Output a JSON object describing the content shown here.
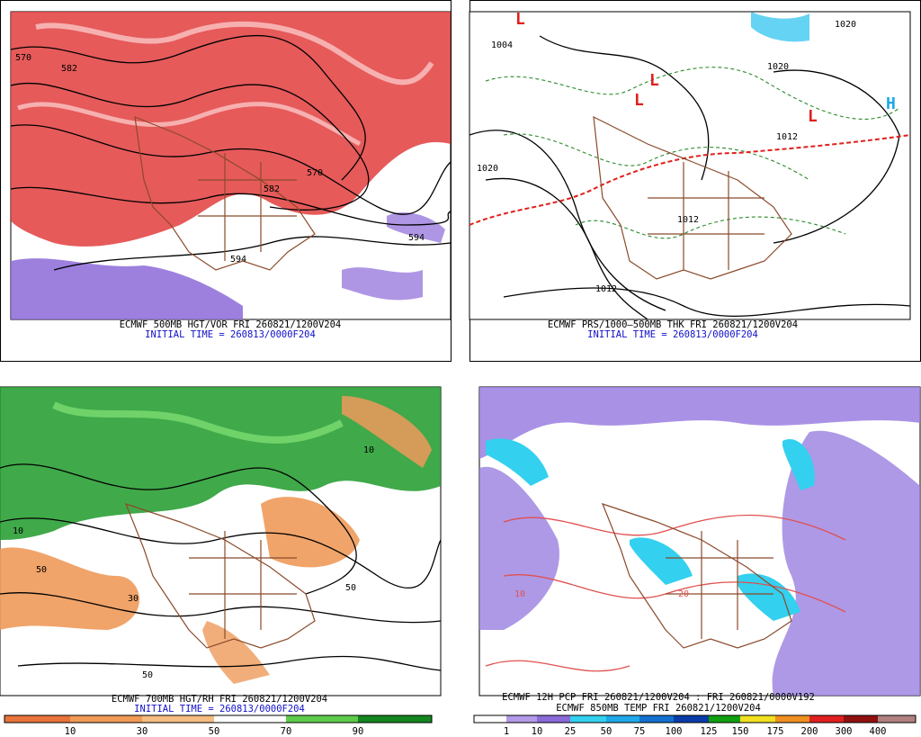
{
  "panels": [
    {
      "caption": "ECMWF 500MB HGT/VOR FRI 260821/1200V204",
      "initial": "INITIAL TIME = 260813/0000F204",
      "labels": [
        "570",
        "582",
        "570",
        "582",
        "594",
        "594"
      ]
    },
    {
      "caption": "ECMWF PRS/1000–500MB THK FRI 260821/1200V204",
      "initial": "INITIAL TIME = 260813/0000F204",
      "labels": [
        "L",
        "1004",
        "L",
        "L",
        "H",
        "1020",
        "1020",
        "1012",
        "1012",
        "1012",
        "1020",
        "L"
      ]
    },
    {
      "caption": "ECMWF 700MB HGT/RH FRI 260821/1200V204",
      "initial": "INITIAL TIME = 260813/0000F204",
      "labels": [
        "10",
        "50",
        "50",
        "10",
        "30",
        "50"
      ],
      "colorbar": [
        10,
        30,
        50,
        70,
        90
      ]
    },
    {
      "caption": "ECMWF 12H PCP FRI 260821/1200V204 : FRI 260821/0000V192",
      "initial": "ECMWF 850MB TEMP FRI 260821/1200V204",
      "labels": [
        "10",
        "20"
      ],
      "colorbar": [
        1,
        10,
        25,
        50,
        75,
        100,
        125,
        150,
        175,
        200,
        300,
        400
      ]
    }
  ]
}
